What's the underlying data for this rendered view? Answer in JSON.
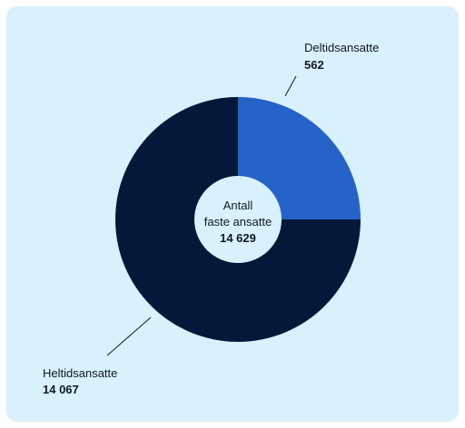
{
  "chart_data": {
    "type": "pie",
    "style": "donut",
    "center_label": {
      "line1": "Antall",
      "line2": "faste ansatte",
      "total": "14 629"
    },
    "slices": [
      {
        "name": "Deltidsansatte",
        "display_value": "562",
        "value": 562,
        "color": "#2563c9"
      },
      {
        "name": "Heltidsansatte",
        "display_value": "14 067",
        "value": 14067,
        "color": "#041839"
      }
    ]
  },
  "colors": {
    "background": "#d9f0fd",
    "center": "#d9f0fd"
  }
}
